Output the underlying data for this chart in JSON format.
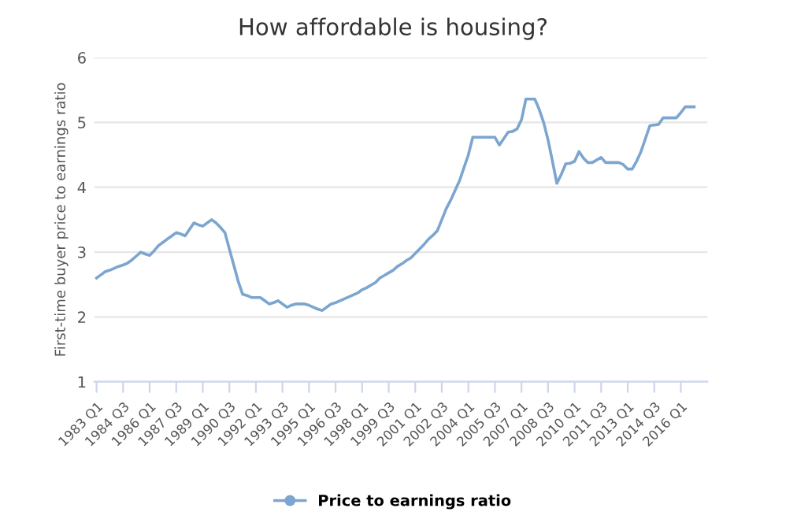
{
  "chart_data": {
    "type": "line",
    "title": "How affordable is housing?",
    "ylabel": "First-time buyer price to earnings ratio",
    "categories": [
      "1983 Q1",
      null,
      null,
      null,
      null,
      null,
      "1984 Q3",
      null,
      null,
      null,
      null,
      null,
      "1986 Q1",
      null,
      null,
      null,
      null,
      null,
      "1987 Q3",
      null,
      null,
      null,
      null,
      null,
      "1989 Q1",
      null,
      null,
      null,
      null,
      null,
      "1990 Q3",
      null,
      null,
      null,
      null,
      null,
      "1992 Q1",
      null,
      null,
      null,
      null,
      null,
      "1993 Q3",
      null,
      null,
      null,
      null,
      null,
      "1995 Q1",
      null,
      null,
      null,
      null,
      null,
      "1996 Q3",
      null,
      null,
      null,
      null,
      null,
      "1998 Q1",
      null,
      null,
      null,
      null,
      null,
      "1999 Q3",
      null,
      null,
      null,
      null,
      null,
      "2001 Q1",
      null,
      null,
      null,
      null,
      null,
      "2002 Q3",
      null,
      null,
      null,
      null,
      null,
      "2004 Q1",
      null,
      null,
      null,
      null,
      null,
      "2005 Q3",
      null,
      null,
      null,
      null,
      null,
      "2007 Q1",
      null,
      null,
      null,
      null,
      null,
      "2008 Q3",
      null,
      null,
      null,
      null,
      null,
      "2010 Q1",
      null,
      null,
      null,
      null,
      null,
      "2011 Q3",
      null,
      null,
      null,
      null,
      null,
      "2013 Q1",
      null,
      null,
      null,
      null,
      null,
      "2014 Q3",
      null,
      null,
      null,
      null,
      null,
      "2016 Q1",
      null,
      null,
      null
    ],
    "series": [
      {
        "name": "Price to earnings ratio",
        "color": "#7ca5d0",
        "values": [
          2.6,
          2.65,
          2.7,
          2.72,
          2.75,
          2.78,
          2.8,
          2.83,
          2.88,
          2.94,
          3.0,
          2.97,
          2.95,
          3.02,
          3.1,
          3.15,
          3.2,
          3.25,
          3.3,
          3.28,
          3.25,
          3.35,
          3.45,
          3.42,
          3.4,
          3.45,
          3.5,
          3.45,
          3.38,
          3.3,
          3.05,
          2.8,
          2.55,
          2.35,
          2.33,
          2.3,
          2.3,
          2.3,
          2.25,
          2.2,
          2.22,
          2.25,
          2.2,
          2.15,
          2.18,
          2.2,
          2.2,
          2.2,
          2.18,
          2.15,
          2.12,
          2.1,
          2.15,
          2.2,
          2.22,
          2.25,
          2.28,
          2.31,
          2.34,
          2.37,
          2.42,
          2.45,
          2.49,
          2.53,
          2.6,
          2.64,
          2.68,
          2.72,
          2.78,
          2.82,
          2.87,
          2.91,
          2.98,
          3.05,
          3.12,
          3.2,
          3.26,
          3.33,
          3.5,
          3.67,
          3.8,
          3.95,
          4.1,
          4.3,
          4.5,
          4.77,
          4.77,
          4.77,
          4.77,
          4.77,
          4.77,
          4.65,
          4.75,
          4.85,
          4.86,
          4.9,
          5.04,
          5.36,
          5.36,
          5.36,
          5.2,
          5.0,
          4.73,
          4.4,
          4.06,
          4.2,
          4.36,
          4.37,
          4.4,
          4.55,
          4.45,
          4.38,
          4.38,
          4.42,
          4.46,
          4.38,
          4.38,
          4.38,
          4.38,
          4.35,
          4.28,
          4.28,
          4.4,
          4.55,
          4.75,
          4.95,
          4.96,
          4.97,
          5.07,
          5.07,
          5.07,
          5.07,
          5.15,
          5.24,
          5.24,
          5.24
        ]
      }
    ],
    "ylim": [
      1,
      6
    ],
    "yticks": [
      1,
      2,
      3,
      4,
      5,
      6
    ],
    "grid": "y",
    "legend": "bottom"
  }
}
